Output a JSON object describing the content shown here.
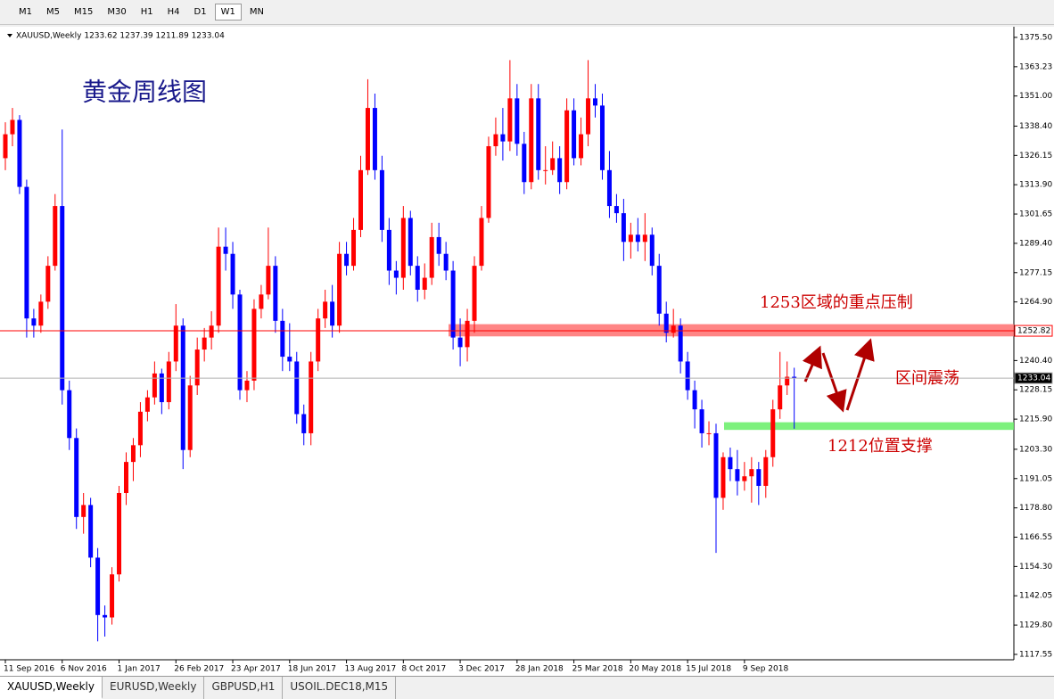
{
  "toolbar": [
    "M1",
    "M5",
    "M15",
    "M30",
    "H1",
    "H4",
    "D1",
    "W1",
    "MN"
  ],
  "tabs": [
    "XAUUSD,Weekly",
    "EURUSD,Weekly",
    "GBPUSD,H1",
    "USOIL.DEC18,M15"
  ],
  "chart_data": {
    "type": "candlestick",
    "title": "XAUUSD,Weekly  1233.62 1237.39 1211.89 1233.04",
    "up_color": "#ff0000",
    "down_color": "#0000ff",
    "x": [
      "11 Sep 2016",
      null,
      null,
      null,
      null,
      null,
      null,
      null,
      "6 Nov 2016",
      null,
      null,
      null,
      null,
      null,
      null,
      null,
      "1 Jan 2017",
      null,
      null,
      null,
      null,
      null,
      null,
      null,
      "26 Feb 2017",
      null,
      null,
      null,
      null,
      null,
      null,
      null,
      "23 Apr 2017",
      null,
      null,
      null,
      null,
      null,
      null,
      null,
      "18 Jun 2017",
      null,
      null,
      null,
      null,
      null,
      null,
      null,
      "13 Aug 2017",
      null,
      null,
      null,
      null,
      null,
      null,
      null,
      "8 Oct 2017",
      null,
      null,
      null,
      null,
      null,
      null,
      null,
      "3 Dec 2017",
      null,
      null,
      null,
      null,
      null,
      null,
      null,
      "28 Jan 2018",
      null,
      null,
      null,
      null,
      null,
      null,
      null,
      "25 Mar 2018",
      null,
      null,
      null,
      null,
      null,
      null,
      null,
      "20 May 2018",
      null,
      null,
      null,
      null,
      null,
      null,
      null,
      "15 Jul 2018",
      null,
      null,
      null,
      null,
      null,
      null,
      null,
      "9 Sep 2018",
      null,
      null,
      null,
      null,
      null,
      null,
      null
    ],
    "open": [
      1325,
      1335,
      1341,
      1313,
      1258,
      1255,
      1265,
      1280,
      1305,
      1228,
      1208,
      1175,
      1180,
      1158,
      1134,
      1133,
      1151,
      1185,
      1198,
      1205,
      1219,
      1225,
      1235,
      1223,
      1240,
      1255,
      1203,
      1230,
      1245,
      1250,
      1255,
      1288,
      1285,
      1268,
      1228,
      1232,
      1262,
      1268,
      1280,
      1257,
      1242,
      1240,
      1218,
      1210,
      1240,
      1258,
      1265,
      1255,
      1285,
      1280,
      1295,
      1320,
      1346,
      1320,
      1295,
      1278,
      1275,
      1300,
      1280,
      1270,
      1275,
      1292,
      1285,
      1278,
      1250,
      1246,
      1257,
      1280,
      1300,
      1330,
      1335,
      1332,
      1350,
      1331,
      1315,
      1350,
      1320,
      1320,
      1325,
      1315,
      1345,
      1325,
      1335,
      1350,
      1347,
      1320,
      1305,
      1302,
      1290,
      1293,
      1290,
      1293,
      1280,
      1260,
      1252,
      1255,
      1240,
      1228,
      1220,
      1210,
      1210,
      1183,
      1200,
      1195,
      1190,
      1192,
      1195,
      1188,
      1200,
      1220,
      1230,
      1233.62
    ],
    "high": [
      1340,
      1346,
      1343,
      1316,
      1262,
      1268,
      1284,
      1310,
      1337,
      1232,
      1212,
      1185,
      1183,
      1162,
      1138,
      1154,
      1188,
      1202,
      1208,
      1223,
      1228,
      1240,
      1237,
      1244,
      1264,
      1258,
      1234,
      1250,
      1254,
      1261,
      1296,
      1296,
      1290,
      1270,
      1236,
      1266,
      1272,
      1296,
      1284,
      1262,
      1256,
      1244,
      1222,
      1244,
      1262,
      1270,
      1272,
      1290,
      1290,
      1300,
      1326,
      1358,
      1352,
      1326,
      1300,
      1282,
      1305,
      1303,
      1284,
      1281,
      1298,
      1298,
      1290,
      1282,
      1258,
      1262,
      1284,
      1305,
      1334,
      1342,
      1346,
      1366,
      1356,
      1336,
      1356,
      1356,
      1330,
      1332,
      1330,
      1350,
      1350,
      1342,
      1366,
      1356,
      1352,
      1328,
      1310,
      1308,
      1298,
      1300,
      1302,
      1296,
      1285,
      1265,
      1262,
      1258,
      1244,
      1232,
      1224,
      1215,
      1214,
      1202,
      1204,
      1203,
      1198,
      1200,
      1198,
      1203,
      1224,
      1244,
      1240,
      1237.39
    ],
    "low": [
      1320,
      1330,
      1310,
      1250,
      1250,
      1252,
      1262,
      1278,
      1222,
      1203,
      1170,
      1168,
      1154,
      1123,
      1125,
      1130,
      1148,
      1180,
      1190,
      1200,
      1215,
      1222,
      1218,
      1220,
      1236,
      1195,
      1200,
      1226,
      1240,
      1245,
      1252,
      1278,
      1262,
      1224,
      1223,
      1228,
      1258,
      1266,
      1252,
      1236,
      1236,
      1214,
      1205,
      1205,
      1236,
      1254,
      1250,
      1252,
      1276,
      1278,
      1292,
      1318,
      1316,
      1290,
      1272,
      1268,
      1270,
      1276,
      1265,
      1266,
      1272,
      1280,
      1274,
      1245,
      1238,
      1240,
      1252,
      1278,
      1298,
      1326,
      1324,
      1328,
      1326,
      1310,
      1312,
      1316,
      1314,
      1318,
      1310,
      1312,
      1322,
      1322,
      1330,
      1342,
      1316,
      1300,
      1298,
      1282,
      1283,
      1286,
      1282,
      1276,
      1255,
      1248,
      1250,
      1235,
      1224,
      1212,
      1204,
      1205,
      1160,
      1178,
      1190,
      1184,
      1186,
      1181,
      1180,
      1183,
      1196,
      1216,
      1226,
      1211.89
    ],
    "close": [
      1335,
      1341,
      1313,
      1258,
      1255,
      1265,
      1280,
      1305,
      1228,
      1208,
      1175,
      1180,
      1158,
      1134,
      1133,
      1151,
      1185,
      1198,
      1205,
      1219,
      1225,
      1235,
      1223,
      1240,
      1255,
      1203,
      1230,
      1245,
      1250,
      1255,
      1288,
      1285,
      1268,
      1228,
      1232,
      1262,
      1268,
      1280,
      1257,
      1242,
      1240,
      1218,
      1210,
      1240,
      1258,
      1265,
      1255,
      1285,
      1280,
      1295,
      1320,
      1346,
      1320,
      1295,
      1278,
      1275,
      1300,
      1280,
      1270,
      1275,
      1292,
      1285,
      1278,
      1250,
      1246,
      1257,
      1280,
      1300,
      1330,
      1335,
      1332,
      1350,
      1331,
      1315,
      1350,
      1320,
      1320,
      1325,
      1315,
      1345,
      1325,
      1335,
      1350,
      1347,
      1320,
      1305,
      1302,
      1290,
      1293,
      1290,
      1293,
      1280,
      1260,
      1252,
      1255,
      1240,
      1228,
      1220,
      1210,
      1210,
      1183,
      1200,
      1195,
      1190,
      1192,
      1195,
      1188,
      1200,
      1220,
      1230,
      1233.62,
      1233.04
    ],
    "ylim": [
      1115.3,
      1379.2
    ],
    "yticks": [
      {
        "value": 1375.5,
        "label": "1375.50"
      },
      1363.23,
      {
        "value": 1351,
        "label": "1351.00"
      },
      {
        "value": 1338.4,
        "label": "1338.40"
      },
      1326.15,
      {
        "value": 1313.9,
        "label": "1313.90"
      },
      1301.65,
      {
        "value": 1289.4,
        "label": "1289.40"
      },
      1277.15,
      {
        "value": 1264.9,
        "label": "1264.90"
      },
      {
        "value": 1240.4,
        "label": "1240.40"
      },
      1228.15,
      {
        "value": 1215.9,
        "label": "1215.90"
      },
      {
        "value": 1203.3,
        "label": "1203.30"
      },
      1191.05,
      {
        "value": 1178.8,
        "label": "1178.80"
      },
      1166.55,
      {
        "value": 1154.3,
        "label": "1154.30"
      },
      1142.05,
      {
        "value": 1129.8,
        "label": "1129.80"
      },
      1117.55
    ],
    "price_lines": [
      {
        "value": 1252.82,
        "color": "#ff0000"
      },
      {
        "value": 1233.04,
        "color": "#b0b0b0"
      }
    ],
    "zones": [
      {
        "from": 1250.5,
        "to": 1255.6,
        "color": "#ff7070"
      },
      {
        "from": 1211.4,
        "to": 1214.6,
        "color": "#66ee66"
      }
    ],
    "annotations": [
      {
        "text": "黄金周线图",
        "color": "#1a1a8c"
      },
      {
        "text": "1253区域的重点压制",
        "color": "#cc0000"
      },
      {
        "text": "区间震荡",
        "color": "#cc0000"
      },
      {
        "text": "1212位置支撑",
        "color": "#cc0000"
      }
    ]
  }
}
